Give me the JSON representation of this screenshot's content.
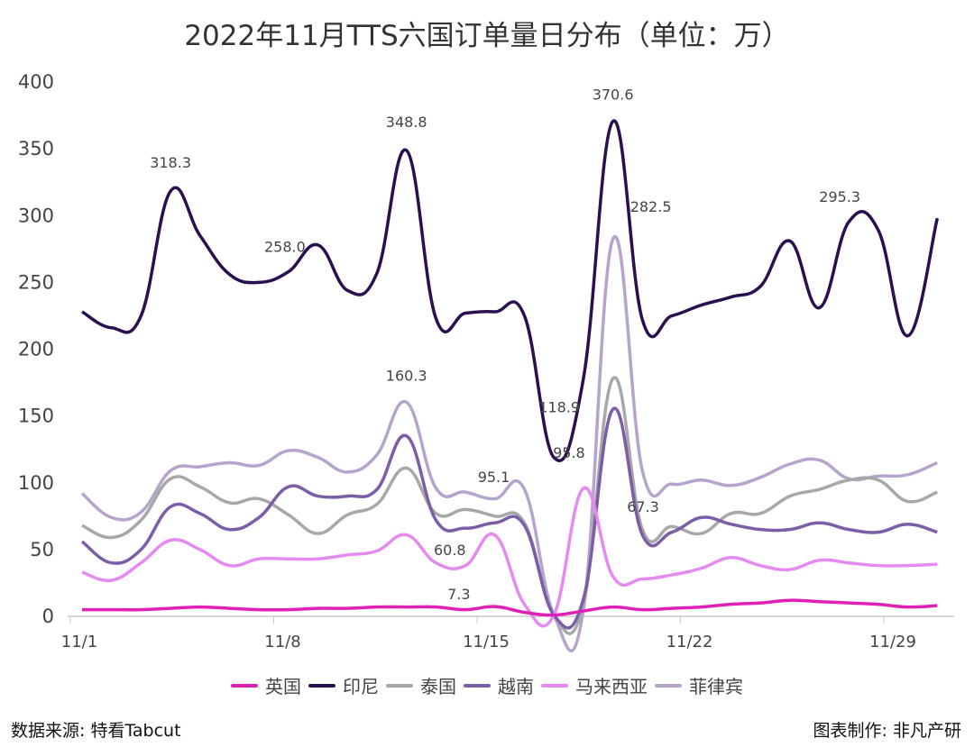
{
  "chart_data": {
    "type": "line",
    "title": "2022年11月TTS六国订单量日分布（单位：万）",
    "x": [
      "11/1",
      "11/2",
      "11/3",
      "11/4",
      "11/5",
      "11/6",
      "11/7",
      "11/8",
      "11/9",
      "11/10",
      "11/11",
      "11/12",
      "11/13",
      "11/14",
      "11/15",
      "11/16",
      "11/17",
      "11/18",
      "11/19",
      "11/20",
      "11/21",
      "11/22",
      "11/23",
      "11/24",
      "11/25",
      "11/26",
      "11/27",
      "11/28",
      "11/29",
      "11/30"
    ],
    "xticks": [
      "11/1",
      "11/8",
      "11/15",
      "11/22",
      "11/29"
    ],
    "ylim": [
      0,
      400
    ],
    "yticks": [
      0,
      50,
      100,
      150,
      200,
      250,
      300,
      350,
      400
    ],
    "grid": false,
    "legend": "bottom",
    "series": [
      {
        "name": "英国",
        "color": "#e020b4",
        "values": [
          5,
          5,
          5,
          6,
          7,
          6,
          5,
          5,
          6,
          6,
          7,
          7,
          7,
          5,
          7.3,
          3,
          1,
          4,
          7,
          5,
          6,
          7,
          9,
          10,
          12,
          11,
          10,
          9,
          7,
          8
        ]
      },
      {
        "name": "印尼",
        "color": "#2a1050",
        "values": [
          228,
          216,
          225,
          318.3,
          285,
          256,
          250,
          258.0,
          278,
          244,
          257,
          348.8,
          223,
          227,
          228,
          225,
          118.9,
          178,
          370.6,
          222,
          225,
          233,
          239,
          247,
          281,
          231,
          295.3,
          289,
          210,
          298
        ]
      },
      {
        "name": "泰国",
        "color": "#a8a8a8",
        "values": [
          68,
          59,
          72,
          103,
          97,
          85,
          88,
          76,
          62,
          76,
          84,
          111,
          77,
          80,
          75,
          70,
          1,
          9,
          178,
          65,
          67.3,
          62,
          77,
          77,
          90,
          95,
          102,
          102,
          86,
          93
        ]
      },
      {
        "name": "越南",
        "color": "#7b5ea7",
        "values": [
          56,
          40,
          50,
          82,
          77,
          65,
          74,
          97,
          90,
          90,
          95,
          135,
          72,
          66,
          70,
          68,
          1,
          13,
          155,
          61,
          63,
          74,
          69,
          65,
          65,
          70,
          65,
          63,
          69,
          63
        ]
      },
      {
        "name": "马来西亚",
        "color": "#e48af0",
        "values": [
          33,
          27,
          40,
          57,
          50,
          38,
          43,
          43,
          43,
          46,
          49,
          61,
          40,
          38,
          60.8,
          9,
          1,
          95.8,
          30,
          28,
          31,
          36,
          44,
          38,
          35,
          42,
          40,
          38,
          38,
          39
        ]
      },
      {
        "name": "菲律宾",
        "color": "#b6a4cc",
        "values": [
          92,
          74,
          78,
          109,
          112,
          115,
          113,
          124,
          119,
          108,
          121,
          160.3,
          96,
          93,
          88,
          95.1,
          1,
          5,
          282.5,
          109,
          99,
          102,
          98,
          104,
          114,
          117,
          103,
          105,
          106,
          115
        ]
      }
    ],
    "data_labels": [
      {
        "series": 1,
        "index": 3,
        "text": "318.3"
      },
      {
        "series": 1,
        "index": 7,
        "text": "258.0"
      },
      {
        "series": 1,
        "index": 11,
        "text": "348.8"
      },
      {
        "series": 1,
        "index": 16,
        "text": "118.9"
      },
      {
        "series": 1,
        "index": 18,
        "text": "370.6"
      },
      {
        "series": 1,
        "index": 26,
        "text": "295.3"
      },
      {
        "series": 5,
        "index": 11,
        "text": "160.3"
      },
      {
        "series": 5,
        "index": 15,
        "text": "95.1"
      },
      {
        "series": 5,
        "index": 18,
        "text": "282.5"
      },
      {
        "series": 4,
        "index": 14,
        "text": "60.8"
      },
      {
        "series": 4,
        "index": 17,
        "text": "95.8"
      },
      {
        "series": 0,
        "index": 14,
        "text": "7.3"
      },
      {
        "series": 2,
        "index": 20,
        "text": "67.3"
      }
    ]
  },
  "footer": {
    "source": "数据来源: 特看Tabcut",
    "made_by": "图表制作: 非凡产研"
  }
}
